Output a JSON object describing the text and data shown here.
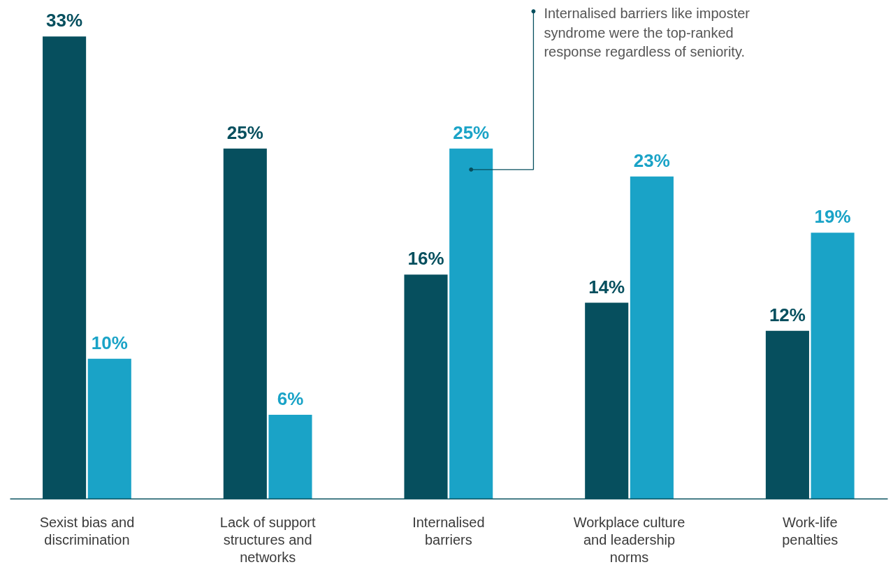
{
  "chart_data": {
    "type": "bar",
    "categories": [
      "Sexist bias and discrimination",
      "Lack of support structures and networks",
      "Internalised barriers",
      "Workplace culture and leadership norms",
      "Work-life penalties"
    ],
    "series": [
      {
        "color": "#064f5e",
        "values": [
          33,
          25,
          16,
          14,
          12
        ],
        "value_labels": [
          "33%",
          "25%",
          "16%",
          "14%",
          "12%"
        ]
      },
      {
        "color": "#1aa3c7",
        "values": [
          10,
          6,
          25,
          23,
          19
        ],
        "value_labels": [
          "10%",
          "6%",
          "25%",
          "23%",
          "19%"
        ]
      }
    ],
    "annotations": [
      "Internalised barriers like imposter syndrome were the top-ranked response regardless of seniority."
    ],
    "tick_labels": "x",
    "grid": false
  }
}
